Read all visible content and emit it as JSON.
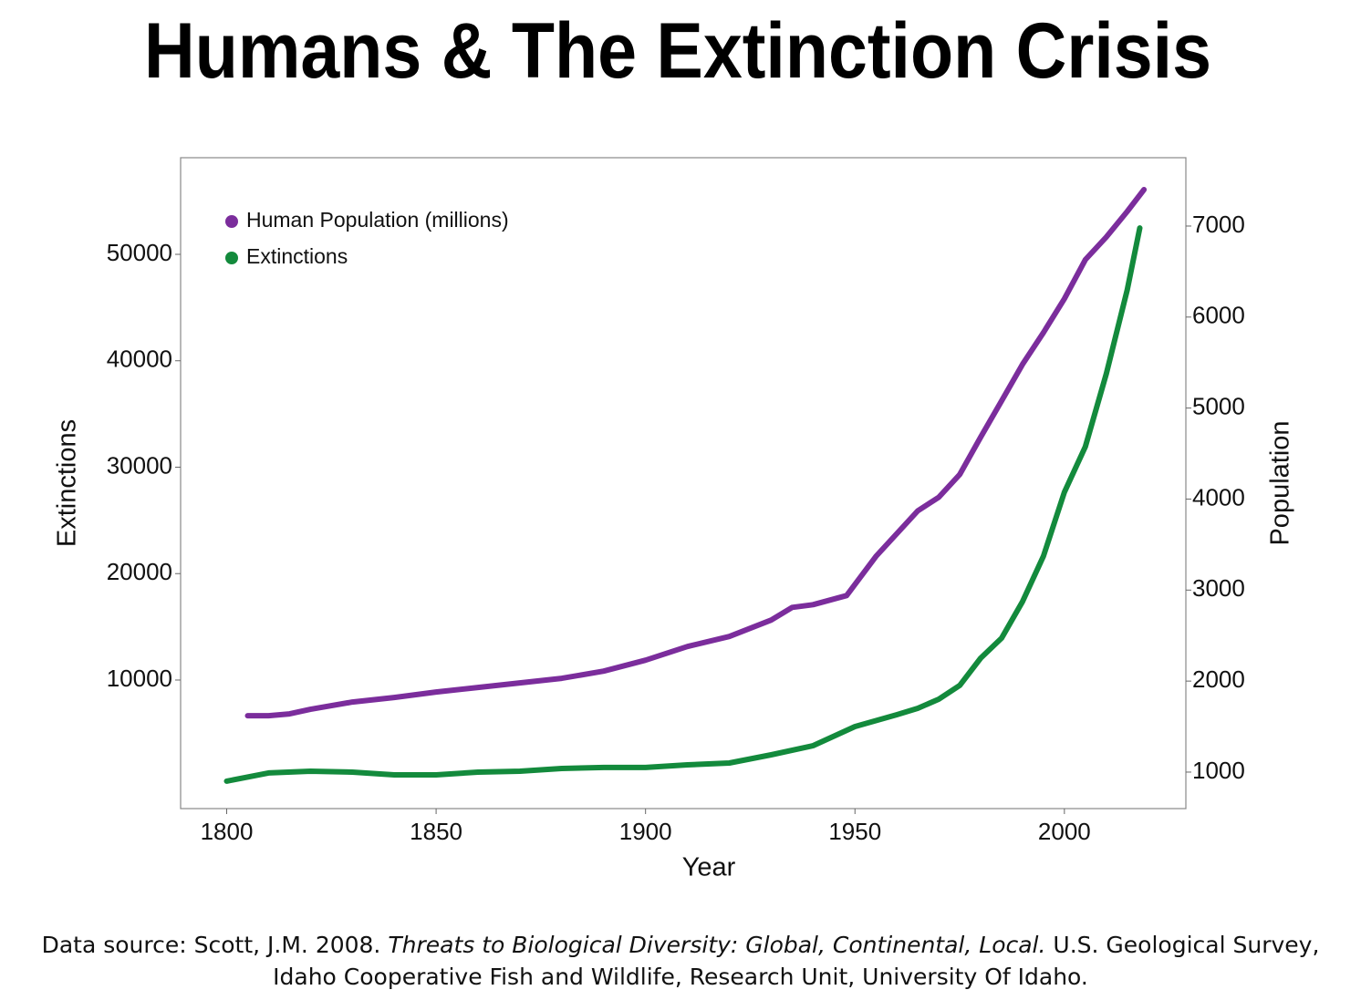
{
  "chart_data": {
    "type": "line",
    "title": "Humans & The Extinction Crisis",
    "x_label": "Year",
    "y_label": "Extinctions",
    "y2_label": "Population",
    "xlim": [
      1789,
      2029
    ],
    "xticks": [
      1800,
      1850,
      1900,
      1950,
      2000
    ],
    "ylim": [
      -2080,
      59080
    ],
    "yticks": [
      10000,
      20000,
      30000,
      40000,
      50000
    ],
    "y2lim": [
      599,
      7751
    ],
    "y2ticks": [
      1000,
      2000,
      3000,
      4000,
      5000,
      6000,
      7000
    ],
    "legend": "upper left",
    "series": [
      {
        "name": "Human Population (millions)",
        "color": "#7b2d9c",
        "axis": "y2",
        "x": [
          1805,
          1810,
          1815,
          1820,
          1830,
          1840,
          1850,
          1860,
          1870,
          1880,
          1890,
          1900,
          1910,
          1920,
          1930,
          1935,
          1940,
          1948,
          1955,
          1965,
          1970,
          1975,
          1980,
          1985,
          1990,
          1995,
          2000,
          2005,
          2010,
          2015,
          2019
        ],
        "values": [
          1620,
          1620,
          1640,
          1690,
          1770,
          1820,
          1880,
          1930,
          1980,
          2030,
          2110,
          2230,
          2380,
          2490,
          2670,
          2810,
          2840,
          2940,
          3370,
          3870,
          4020,
          4270,
          4680,
          5080,
          5480,
          5830,
          6200,
          6630,
          6880,
          7160,
          7400
        ]
      },
      {
        "name": "Extinctions",
        "color": "#138a3c",
        "x": [
          1800,
          1810,
          1820,
          1830,
          1840,
          1850,
          1860,
          1870,
          1880,
          1890,
          1900,
          1910,
          1920,
          1930,
          1940,
          1950,
          1960,
          1965,
          1970,
          1975,
          1980,
          1985,
          1990,
          1995,
          2000,
          2005,
          2010,
          2015,
          2018
        ],
        "values": [
          500,
          1265,
          1435,
          1350,
          1090,
          1090,
          1350,
          1435,
          1690,
          1780,
          1780,
          2035,
          2205,
          2975,
          3830,
          5630,
          6740,
          7345,
          8200,
          9490,
          12055,
          13940,
          17365,
          21650,
          27640,
          31925,
          38775,
          46655,
          52480
        ]
      }
    ]
  },
  "source": {
    "prefix": "Data source: Scott, J.M. 2008.",
    "title": "Threats to Biological Diversity: Global, Continental, Local.",
    "suffix_line1": "U.S. Geological Survey,",
    "suffix_line2": "Idaho Cooperative Fish and Wildlife, Research Unit, University Of Idaho."
  }
}
